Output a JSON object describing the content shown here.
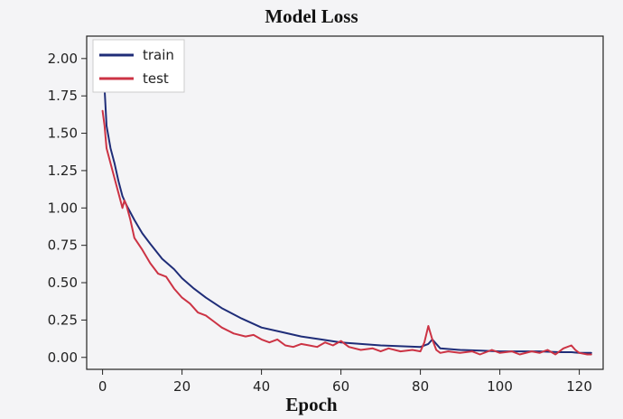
{
  "chart_data": {
    "type": "line",
    "title": "Model Loss",
    "xlabel": "Epoch",
    "ylabel": "",
    "xlim": [
      -4,
      126
    ],
    "ylim": [
      -0.08,
      2.15
    ],
    "xticks": [
      0,
      20,
      40,
      60,
      80,
      100,
      120
    ],
    "xtick_labels": [
      "0",
      "20",
      "40",
      "60",
      "80",
      "100",
      "120"
    ],
    "yticks": [
      0.0,
      0.25,
      0.5,
      0.75,
      1.0,
      1.25,
      1.5,
      1.75,
      2.0
    ],
    "ytick_labels": [
      "0.00",
      "0.25",
      "0.50",
      "0.75",
      "1.00",
      "1.25",
      "1.50",
      "1.75",
      "2.00"
    ],
    "grid": false,
    "legend_placement": "upper-left",
    "series": [
      {
        "name": "train",
        "color": "#1f2d78",
        "x": [
          0,
          1,
          2,
          3,
          4,
          5,
          6,
          8,
          10,
          12,
          15,
          18,
          20,
          23,
          26,
          30,
          35,
          40,
          45,
          50,
          55,
          60,
          65,
          70,
          75,
          80,
          82,
          83,
          85,
          90,
          95,
          100,
          105,
          110,
          115,
          118,
          120,
          123
        ],
        "y": [
          2.05,
          1.55,
          1.4,
          1.3,
          1.18,
          1.08,
          1.02,
          0.92,
          0.83,
          0.76,
          0.66,
          0.59,
          0.53,
          0.46,
          0.4,
          0.33,
          0.26,
          0.2,
          0.17,
          0.14,
          0.12,
          0.1,
          0.09,
          0.08,
          0.075,
          0.07,
          0.09,
          0.12,
          0.06,
          0.05,
          0.045,
          0.04,
          0.04,
          0.04,
          0.035,
          0.035,
          0.03,
          0.03
        ]
      },
      {
        "name": "test",
        "color": "#cc3344",
        "x": [
          0,
          0.5,
          1,
          2,
          3,
          4,
          5,
          5.5,
          6,
          7,
          8,
          10,
          12,
          14,
          16,
          18,
          20,
          22,
          24,
          26,
          28,
          30,
          33,
          36,
          38,
          40,
          42,
          44,
          46,
          48,
          50,
          52,
          54,
          56,
          58,
          60,
          62,
          65,
          68,
          70,
          72,
          75,
          78,
          80,
          81,
          82,
          83,
          84,
          85,
          87,
          90,
          93,
          95,
          98,
          100,
          103,
          105,
          108,
          110,
          112,
          114,
          116,
          118,
          119,
          120,
          122,
          123
        ],
        "y": [
          1.65,
          1.55,
          1.4,
          1.3,
          1.2,
          1.1,
          1.0,
          1.05,
          1.02,
          0.92,
          0.8,
          0.72,
          0.63,
          0.56,
          0.54,
          0.46,
          0.4,
          0.36,
          0.3,
          0.28,
          0.24,
          0.2,
          0.16,
          0.14,
          0.15,
          0.12,
          0.1,
          0.12,
          0.08,
          0.07,
          0.09,
          0.08,
          0.07,
          0.1,
          0.08,
          0.11,
          0.07,
          0.05,
          0.06,
          0.04,
          0.06,
          0.04,
          0.05,
          0.04,
          0.1,
          0.21,
          0.12,
          0.05,
          0.03,
          0.04,
          0.03,
          0.04,
          0.02,
          0.05,
          0.03,
          0.04,
          0.02,
          0.04,
          0.03,
          0.05,
          0.02,
          0.06,
          0.08,
          0.05,
          0.03,
          0.02,
          0.02
        ]
      }
    ]
  }
}
